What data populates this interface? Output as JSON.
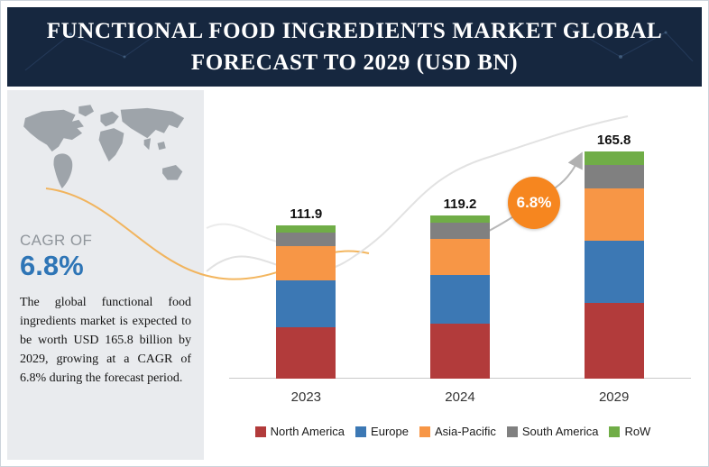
{
  "header": {
    "title_line1": "FUNCTIONAL FOOD INGREDIENTS MARKET GLOBAL",
    "title_line2": "FORECAST TO 2029 (USD BN)"
  },
  "sidebar": {
    "cagr_label": "CAGR OF",
    "cagr_value": "6.8%",
    "description": "The global functional food ingredients market is expected to be worth USD 165.8 billion by 2029, growing at a CAGR of 6.8% during the forecast period."
  },
  "badge": {
    "label": "6.8%",
    "color": "#f6861f"
  },
  "colors": {
    "banner_navy": "#16273f",
    "sidebar_gray": "#e9ebee",
    "cagr_blue": "#2e75b6"
  },
  "chart_data": {
    "type": "bar",
    "stacked": true,
    "title": "Functional Food Ingredients Market Global Forecast to 2029 (USD BN)",
    "unit": "USD BN",
    "categories": [
      "2023",
      "2024",
      "2029"
    ],
    "totals": [
      111.9,
      119.2,
      165.8
    ],
    "series": [
      {
        "name": "North America",
        "color": "#b23b3b",
        "values": [
          37.5,
          40.0,
          55.0
        ]
      },
      {
        "name": "Europe",
        "color": "#3c78b4",
        "values": [
          34.0,
          36.0,
          46.0
        ]
      },
      {
        "name": "Asia-Pacific",
        "color": "#f79646",
        "values": [
          25.0,
          26.0,
          38.0
        ]
      },
      {
        "name": "South America",
        "color": "#808080",
        "values": [
          10.4,
          12.0,
          16.8
        ]
      },
      {
        "name": "RoW",
        "color": "#70ad47",
        "values": [
          5.0,
          5.2,
          10.0
        ]
      }
    ],
    "cagr": "6.8%",
    "legend_position": "bottom",
    "ylim": [
      0,
      180
    ],
    "grid": false
  }
}
